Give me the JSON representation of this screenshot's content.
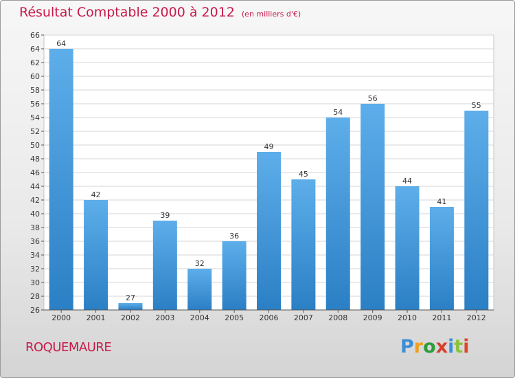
{
  "header": {
    "title": "Résultat Comptable 2000 à 2012",
    "subtitle": "(en milliers d'€)"
  },
  "footer": {
    "commune": "ROQUEMAURE",
    "logo_letters": [
      "P",
      "r",
      "o",
      "x",
      "i",
      "t",
      "i"
    ],
    "logo_colors": [
      "#3b8fd6",
      "#f0a020",
      "#2f9c3c",
      "#d8402e",
      "#3b8fd6",
      "#8bc33a",
      "#e0452a"
    ]
  },
  "colors": {
    "title": "#c8184a",
    "bar_top": "#5daeea",
    "bar_bottom": "#2b7fc4",
    "grid": "#d6d6d6"
  },
  "chart_data": {
    "type": "bar",
    "categories": [
      "2000",
      "2001",
      "2002",
      "2003",
      "2004",
      "2005",
      "2006",
      "2007",
      "2008",
      "2009",
      "2010",
      "2011",
      "2012"
    ],
    "values": [
      64,
      42,
      27,
      39,
      32,
      36,
      49,
      45,
      54,
      56,
      44,
      41,
      55
    ],
    "ylim": [
      26,
      66
    ],
    "yticks": [
      26,
      28,
      30,
      32,
      34,
      36,
      38,
      40,
      42,
      44,
      46,
      48,
      50,
      52,
      54,
      56,
      58,
      60,
      62,
      64,
      66
    ],
    "grid": true,
    "xlabel": "",
    "ylabel": ""
  }
}
